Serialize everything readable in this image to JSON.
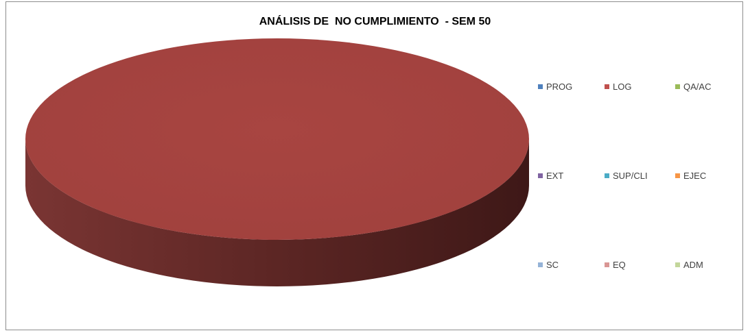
{
  "chart_data": {
    "type": "pie",
    "title": "ANÁLISIS DE  NO CUMPLIMIENTO  - SEM 50",
    "three_d": true,
    "legend_position": "right",
    "categories": [
      "PROG",
      "LOG",
      "QA/AC",
      "EXT",
      "SUP/CLI",
      "EJEC",
      "SC",
      "EQ",
      "ADM"
    ],
    "values": [
      0,
      1,
      0,
      0,
      0,
      0,
      0,
      0,
      0
    ],
    "colors": [
      "#4F81BD",
      "#C0504D",
      "#9BBB59",
      "#8064A2",
      "#4BACC6",
      "#F79646",
      "#95B3D7",
      "#D99694",
      "#C3D69B"
    ]
  }
}
